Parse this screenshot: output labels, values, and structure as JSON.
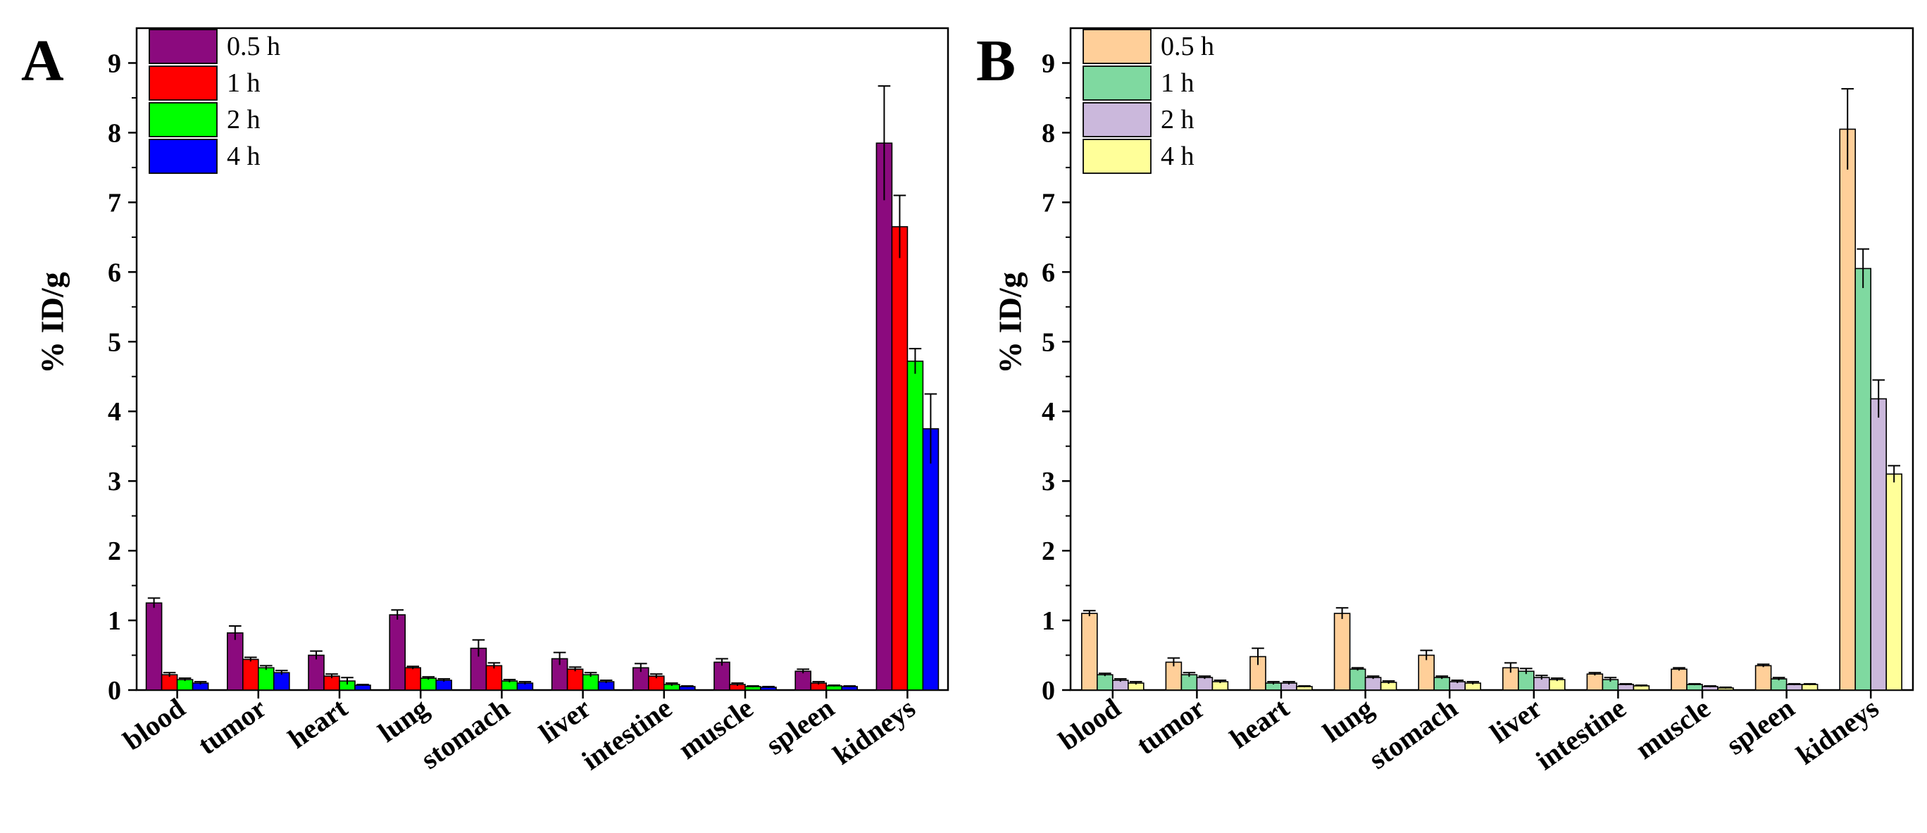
{
  "chart_data": [
    {
      "type": "bar",
      "panel_label": "A",
      "ylabel": "% ID/g",
      "xlabel": "",
      "ylim": [
        0,
        9.5
      ],
      "yticks": [
        "0",
        "1",
        "2",
        "3",
        "4",
        "5",
        "6",
        "7",
        "8",
        "9"
      ],
      "categories": [
        "blood",
        "tumor",
        "heart",
        "lung",
        "stomach",
        "liver",
        "intestine",
        "muscle",
        "spleen",
        "kidneys"
      ],
      "legend_position": "top-left",
      "series": [
        {
          "name": "0.5 h",
          "color": "#8B0A7E",
          "values": [
            1.25,
            0.82,
            0.5,
            1.08,
            0.6,
            0.45,
            0.32,
            0.4,
            0.27,
            7.85
          ],
          "errors": [
            0.07,
            0.1,
            0.06,
            0.07,
            0.12,
            0.09,
            0.06,
            0.05,
            0.03,
            0.82
          ]
        },
        {
          "name": "1 h",
          "color": "#FF0000",
          "values": [
            0.22,
            0.44,
            0.2,
            0.32,
            0.35,
            0.3,
            0.2,
            0.08,
            0.1,
            6.65
          ],
          "errors": [
            0.03,
            0.03,
            0.03,
            0.02,
            0.04,
            0.03,
            0.03,
            0.02,
            0.02,
            0.45
          ]
        },
        {
          "name": "2 h",
          "color": "#00FF00",
          "values": [
            0.15,
            0.32,
            0.13,
            0.17,
            0.13,
            0.22,
            0.08,
            0.05,
            0.06,
            4.72
          ],
          "errors": [
            0.02,
            0.03,
            0.05,
            0.02,
            0.02,
            0.03,
            0.02,
            0.01,
            0.01,
            0.18
          ]
        },
        {
          "name": "4 h",
          "color": "#0000FF",
          "values": [
            0.1,
            0.25,
            0.07,
            0.14,
            0.1,
            0.12,
            0.05,
            0.04,
            0.05,
            3.75
          ],
          "errors": [
            0.02,
            0.03,
            0.01,
            0.02,
            0.02,
            0.02,
            0.01,
            0.01,
            0.01,
            0.5
          ]
        }
      ]
    },
    {
      "type": "bar",
      "panel_label": "B",
      "ylabel": "% ID/g",
      "xlabel": "",
      "ylim": [
        0,
        9.5
      ],
      "yticks": [
        "0",
        "1",
        "2",
        "3",
        "4",
        "5",
        "6",
        "7",
        "8",
        "9"
      ],
      "categories": [
        "blood",
        "tumor",
        "heart",
        "lung",
        "stomach",
        "liver",
        "intestine",
        "muscle",
        "spleen",
        "kidneys"
      ],
      "legend_position": "top-left",
      "series": [
        {
          "name": "0.5 h",
          "color": "#FFCF99",
          "values": [
            1.1,
            0.4,
            0.48,
            1.1,
            0.5,
            0.32,
            0.23,
            0.3,
            0.35,
            8.05
          ],
          "errors": [
            0.04,
            0.06,
            0.12,
            0.08,
            0.07,
            0.07,
            0.02,
            0.02,
            0.02,
            0.58
          ]
        },
        {
          "name": "1 h",
          "color": "#7FD9A0",
          "values": [
            0.22,
            0.22,
            0.1,
            0.3,
            0.18,
            0.27,
            0.15,
            0.08,
            0.16,
            6.05
          ],
          "errors": [
            0.02,
            0.03,
            0.02,
            0.02,
            0.02,
            0.04,
            0.03,
            0.01,
            0.02,
            0.28
          ]
        },
        {
          "name": "2 h",
          "color": "#CBB8DC",
          "values": [
            0.14,
            0.18,
            0.1,
            0.18,
            0.12,
            0.18,
            0.08,
            0.05,
            0.08,
            4.18
          ],
          "errors": [
            0.02,
            0.02,
            0.02,
            0.02,
            0.02,
            0.03,
            0.01,
            0.01,
            0.01,
            0.27
          ]
        },
        {
          "name": "4 h",
          "color": "#FFFF99",
          "values": [
            0.1,
            0.12,
            0.05,
            0.11,
            0.1,
            0.15,
            0.06,
            0.03,
            0.08,
            3.1
          ],
          "errors": [
            0.02,
            0.02,
            0.01,
            0.02,
            0.02,
            0.02,
            0.01,
            0.01,
            0.01,
            0.12
          ]
        }
      ]
    }
  ]
}
